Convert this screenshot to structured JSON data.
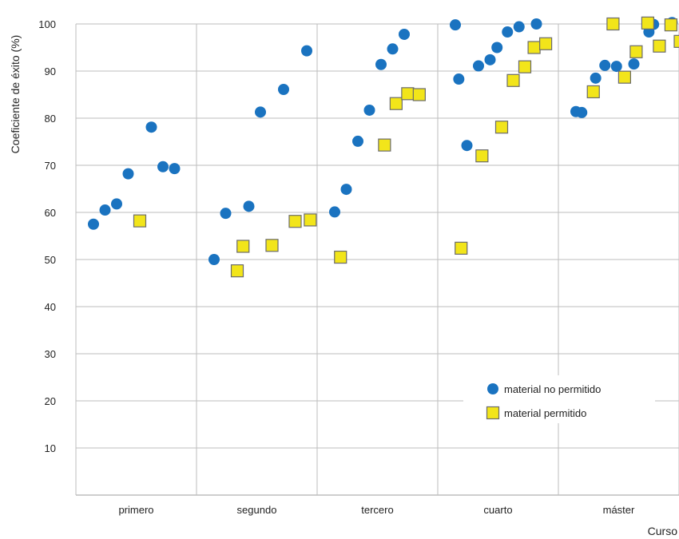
{
  "chart_data": {
    "type": "scatter",
    "xlabel": "Curso",
    "ylabel": "Coeficiente de éxito (%)",
    "ylim": [
      0,
      100
    ],
    "yticks": [
      10,
      20,
      30,
      40,
      50,
      60,
      70,
      80,
      90,
      100
    ],
    "categories": [
      "primero",
      "segundo",
      "tercero",
      "cuarto",
      "máster"
    ],
    "grid": true,
    "legend": "bottom-right",
    "series": [
      {
        "name": "material no permitido",
        "marker": "circle",
        "color": "#1a73c0",
        "points": [
          {
            "cat": 0,
            "slot": 0,
            "y": 57.5
          },
          {
            "cat": 0,
            "slot": 1,
            "y": 60.5
          },
          {
            "cat": 0,
            "slot": 2,
            "y": 61.8
          },
          {
            "cat": 0,
            "slot": 3,
            "y": 68.2
          },
          {
            "cat": 0,
            "slot": 5,
            "y": 78.1
          },
          {
            "cat": 0,
            "slot": 6,
            "y": 69.7
          },
          {
            "cat": 0,
            "slot": 7,
            "y": 69.3
          },
          {
            "cat": 1,
            "slot": 0,
            "y": 50.0
          },
          {
            "cat": 1,
            "slot": 1,
            "y": 59.8
          },
          {
            "cat": 1,
            "slot": 3,
            "y": 61.3
          },
          {
            "cat": 1,
            "slot": 4,
            "y": 81.3
          },
          {
            "cat": 1,
            "slot": 6,
            "y": 86.1
          },
          {
            "cat": 1,
            "slot": 8,
            "y": 94.3
          },
          {
            "cat": 2,
            "slot": 0,
            "y": 60.1
          },
          {
            "cat": 2,
            "slot": 1,
            "y": 64.9
          },
          {
            "cat": 2,
            "slot": 2,
            "y": 75.1
          },
          {
            "cat": 2,
            "slot": 3,
            "y": 81.7
          },
          {
            "cat": 2,
            "slot": 4,
            "y": 91.4
          },
          {
            "cat": 2,
            "slot": 5,
            "y": 94.7
          },
          {
            "cat": 2,
            "slot": 6,
            "y": 97.8
          },
          {
            "cat": 3,
            "slot": 0,
            "y": 99.8
          },
          {
            "cat": 3,
            "slot": 0.3,
            "y": 88.3
          },
          {
            "cat": 3,
            "slot": 1,
            "y": 74.2
          },
          {
            "cat": 3,
            "slot": 2,
            "y": 91.1
          },
          {
            "cat": 3,
            "slot": 3,
            "y": 92.4
          },
          {
            "cat": 3,
            "slot": 3.6,
            "y": 95.0
          },
          {
            "cat": 3,
            "slot": 4.5,
            "y": 98.3
          },
          {
            "cat": 3,
            "slot": 5.5,
            "y": 99.4
          },
          {
            "cat": 3,
            "slot": 7,
            "y": 100.0
          },
          {
            "cat": 4,
            "slot": 0,
            "y": 81.4
          },
          {
            "cat": 4,
            "slot": 0.5,
            "y": 81.2
          },
          {
            "cat": 4,
            "slot": 1.7,
            "y": 88.5
          },
          {
            "cat": 4,
            "slot": 2.5,
            "y": 91.2
          },
          {
            "cat": 4,
            "slot": 3.5,
            "y": 91.0
          },
          {
            "cat": 4,
            "slot": 5,
            "y": 91.5
          },
          {
            "cat": 4,
            "slot": 6.3,
            "y": 98.3
          },
          {
            "cat": 4,
            "slot": 6.7,
            "y": 99.9
          },
          {
            "cat": 4,
            "slot": 8.3,
            "y": 100.3
          }
        ]
      },
      {
        "name": "material permitido",
        "marker": "square",
        "color": "#f2e51a",
        "points": [
          {
            "cat": 0,
            "slot": 4,
            "y": 58.2
          },
          {
            "cat": 1,
            "slot": 2,
            "y": 47.6
          },
          {
            "cat": 1,
            "slot": 2.5,
            "y": 52.8
          },
          {
            "cat": 1,
            "slot": 5,
            "y": 53.0
          },
          {
            "cat": 1,
            "slot": 7,
            "y": 58.1
          },
          {
            "cat": 1,
            "slot": 8.3,
            "y": 58.4
          },
          {
            "cat": 2,
            "slot": 0.5,
            "y": 50.5
          },
          {
            "cat": 2,
            "slot": 4.3,
            "y": 74.3
          },
          {
            "cat": 2,
            "slot": 5.3,
            "y": 83.1
          },
          {
            "cat": 2,
            "slot": 6.3,
            "y": 85.2
          },
          {
            "cat": 2,
            "slot": 7.3,
            "y": 85.0
          },
          {
            "cat": 3,
            "slot": 0.5,
            "y": 52.4
          },
          {
            "cat": 3,
            "slot": 2.3,
            "y": 72.0
          },
          {
            "cat": 3,
            "slot": 4,
            "y": 78.1
          },
          {
            "cat": 3,
            "slot": 5,
            "y": 88.0
          },
          {
            "cat": 3,
            "slot": 6,
            "y": 90.9
          },
          {
            "cat": 3,
            "slot": 6.8,
            "y": 95.0
          },
          {
            "cat": 3,
            "slot": 7.8,
            "y": 95.8
          },
          {
            "cat": 4,
            "slot": 1.5,
            "y": 85.6
          },
          {
            "cat": 4,
            "slot": 3.2,
            "y": 100.0
          },
          {
            "cat": 4,
            "slot": 4.2,
            "y": 88.7
          },
          {
            "cat": 4,
            "slot": 5.2,
            "y": 94.1
          },
          {
            "cat": 4,
            "slot": 6.2,
            "y": 100.2
          },
          {
            "cat": 4,
            "slot": 7.2,
            "y": 95.3
          },
          {
            "cat": 4,
            "slot": 8.2,
            "y": 99.8
          },
          {
            "cat": 4,
            "slot": 9,
            "y": 96.3
          }
        ]
      }
    ]
  }
}
